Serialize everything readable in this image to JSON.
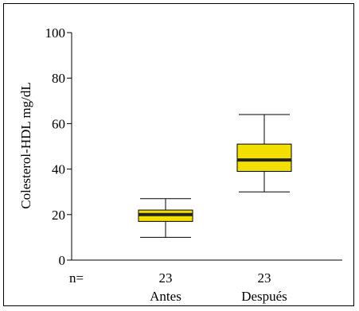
{
  "chart_data": {
    "type": "box",
    "ylabel": "Colesterol-HDL mg/dL",
    "ylim": [
      0,
      100
    ],
    "yticks": [
      0,
      20,
      40,
      60,
      80,
      100
    ],
    "n_label": "n=",
    "categories": [
      "Antes",
      "Después"
    ],
    "n_values": [
      "23",
      "23"
    ],
    "boxes": [
      {
        "category": "Antes",
        "min": 10,
        "q1": 17,
        "median": 20,
        "q3": 22,
        "max": 27
      },
      {
        "category": "Después",
        "min": 30,
        "q1": 39,
        "median": 44,
        "q3": 51,
        "max": 64
      }
    ],
    "box_fill": "#f2df00",
    "line_color": "#000000",
    "grid": false
  }
}
